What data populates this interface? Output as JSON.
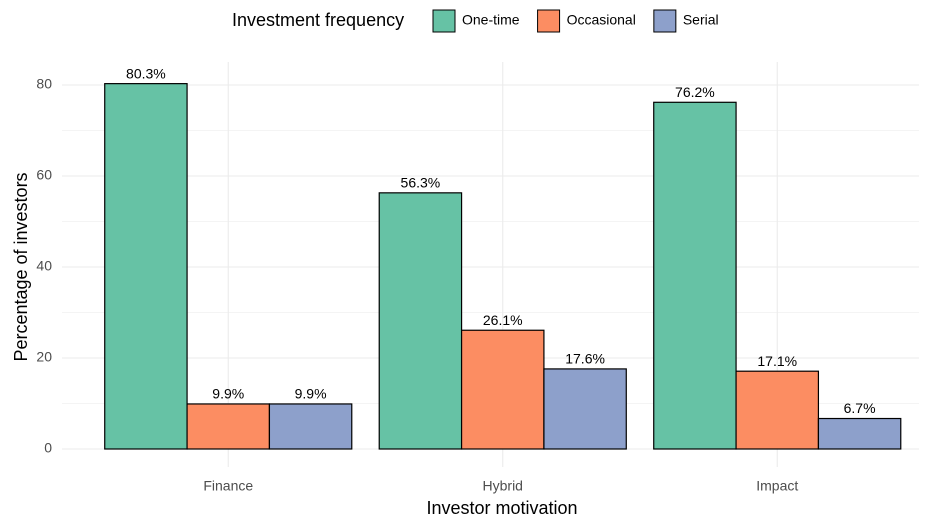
{
  "chart_data": {
    "type": "bar",
    "x_label": "Investor motivation",
    "y_label": "Percentage of investors",
    "legend_title": "Investment frequency",
    "legend_position": "top",
    "categories": [
      "Finance",
      "Hybrid",
      "Impact"
    ],
    "series": [
      {
        "name": "One-time",
        "color": "#66c2a5",
        "values": [
          80.3,
          56.3,
          76.2
        ],
        "value_labels": [
          "80.3%",
          "56.3%",
          "76.2%"
        ]
      },
      {
        "name": "Occasional",
        "color": "#fc8d62",
        "values": [
          9.9,
          26.1,
          17.1
        ],
        "value_labels": [
          "9.9%",
          "26.1%",
          "17.1%"
        ]
      },
      {
        "name": "Serial",
        "color": "#8da0cb",
        "values": [
          9.9,
          17.6,
          6.7
        ],
        "value_labels": [
          "9.9%",
          "17.6%",
          "6.7%"
        ]
      }
    ],
    "ylim": [
      0,
      80
    ],
    "yticks": [
      0,
      20,
      40,
      60,
      80
    ],
    "minor_yticks": [
      10,
      30,
      50,
      70
    ],
    "grid": true
  }
}
